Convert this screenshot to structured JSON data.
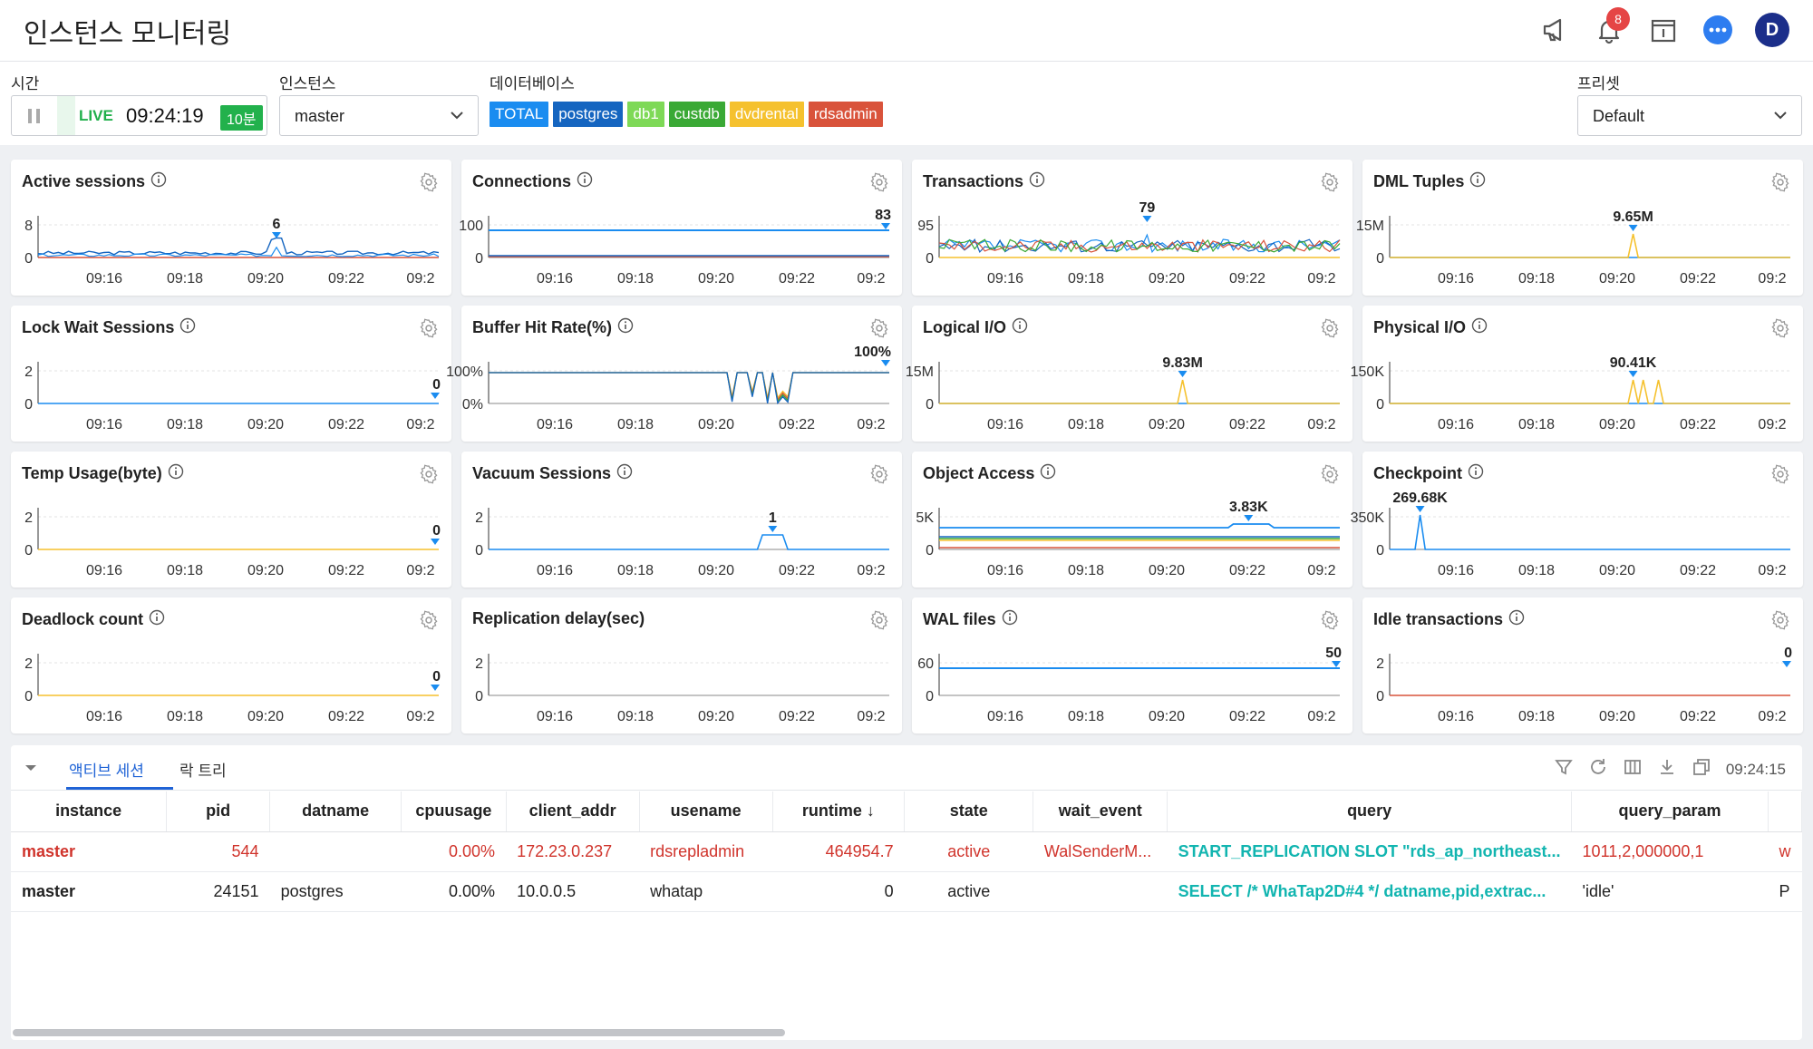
{
  "header": {
    "title": "인스턴스 모니터링",
    "notification_count": "8",
    "avatar_letter": "D"
  },
  "filters": {
    "time_label": "시간",
    "live_label": "LIVE",
    "clock": "09:24:19",
    "range": "10분",
    "instance_label": "인스턴스",
    "instance_value": "master",
    "db_label": "데이터베이스",
    "databases": [
      {
        "name": "TOTAL",
        "color": "#1a8cf0"
      },
      {
        "name": "postgres",
        "color": "#1565c0"
      },
      {
        "name": "db1",
        "color": "#7ed957"
      },
      {
        "name": "custdb",
        "color": "#3aa935"
      },
      {
        "name": "dvdrental",
        "color": "#f5c12e"
      },
      {
        "name": "rdsadmin",
        "color": "#d9533b"
      }
    ],
    "preset_label": "프리셋",
    "preset_value": "Default"
  },
  "x_ticks": [
    "09:16",
    "09:18",
    "09:20",
    "09:22",
    "09:2"
  ],
  "cards": [
    {
      "title": "Active sessions",
      "y_top": "8",
      "y_bottom": "0",
      "peak": "6",
      "info": true
    },
    {
      "title": "Connections",
      "y_top": "100",
      "y_bottom": "0",
      "peak": "83",
      "info": true
    },
    {
      "title": "Transactions",
      "y_top": "95",
      "y_bottom": "0",
      "peak": "79",
      "info": true
    },
    {
      "title": "DML Tuples",
      "y_top": "15M",
      "y_bottom": "0",
      "peak": "9.65M",
      "info": true
    },
    {
      "title": "Lock Wait Sessions",
      "y_top": "2",
      "y_bottom": "0",
      "peak": "0",
      "info": true
    },
    {
      "title": "Buffer Hit Rate(%)",
      "y_top": "100%",
      "y_bottom": "0%",
      "peak": "100%",
      "info": true
    },
    {
      "title": "Logical I/O",
      "y_top": "15M",
      "y_bottom": "0",
      "peak": "9.83M",
      "info": true
    },
    {
      "title": "Physical I/O",
      "y_top": "150K",
      "y_bottom": "0",
      "peak": "90.41K",
      "info": true
    },
    {
      "title": "Temp Usage(byte)",
      "y_top": "2",
      "y_bottom": "0",
      "peak": "0",
      "info": true
    },
    {
      "title": "Vacuum Sessions",
      "y_top": "2",
      "y_bottom": "0",
      "peak": "1",
      "info": true
    },
    {
      "title": "Object Access",
      "y_top": "5K",
      "y_bottom": "0",
      "peak": "3.83K",
      "info": true
    },
    {
      "title": "Checkpoint",
      "y_top": "350K",
      "y_bottom": "0",
      "peak": "269.68K",
      "info": true
    },
    {
      "title": "Deadlock count",
      "y_top": "2",
      "y_bottom": "0",
      "peak": "0",
      "info": true
    },
    {
      "title": "Replication delay(sec)",
      "y_top": "2",
      "y_bottom": "0",
      "peak": "",
      "info": false
    },
    {
      "title": "WAL files",
      "y_top": "60",
      "y_bottom": "0",
      "peak": "50",
      "info": true
    },
    {
      "title": "Idle transactions",
      "y_top": "2",
      "y_bottom": "0",
      "peak": "0",
      "info": true
    }
  ],
  "panel": {
    "tabs": [
      "액티브 세션",
      "락 트리"
    ],
    "timestamp": "09:24:15",
    "columns": [
      "instance",
      "pid",
      "datname",
      "cpuusage",
      "client_addr",
      "usename",
      "runtime",
      "state",
      "wait_event",
      "query",
      "query_param"
    ],
    "sort_column": "runtime",
    "rows": [
      {
        "instance": "master",
        "pid": "544",
        "datname": "",
        "cpuusage": "0.00%",
        "client_addr": "172.23.0.237",
        "usename": "rdsrepladmin",
        "runtime": "464954.7",
        "state": "active",
        "wait_event": "WalSenderM...",
        "query": "START_REPLICATION SLOT \"rds_ap_northeast...",
        "query_param": "1011,2,000000,1",
        "extra": "w",
        "warn": true
      },
      {
        "instance": "master",
        "pid": "24151",
        "datname": "postgres",
        "cpuusage": "0.00%",
        "client_addr": "10.0.0.5",
        "usename": "whatap",
        "runtime": "0",
        "state": "active",
        "wait_event": "",
        "query": "SELECT /* WhaTap2D#4 */ datname,pid,extrac...",
        "query_param": "'idle'",
        "extra": "P",
        "warn": false
      }
    ]
  }
}
